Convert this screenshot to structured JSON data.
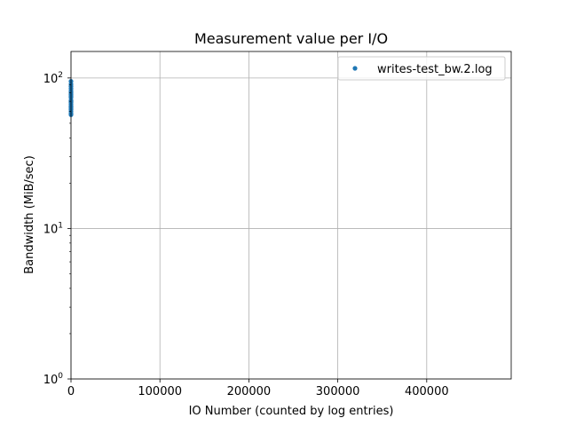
{
  "chart_data": {
    "type": "scatter",
    "title": "Measurement value per I/O",
    "xlabel": "IO Number (counted by log entries)",
    "ylabel": "Bandwidth (MiB/sec)",
    "xlim": [
      0,
      495000
    ],
    "ylim": [
      1,
      150
    ],
    "yscale": "log",
    "grid": true,
    "legend_position": "top-right",
    "x_ticks": [
      {
        "value": 0,
        "label": "0"
      },
      {
        "value": 100000,
        "label": "100000"
      },
      {
        "value": 200000,
        "label": "200000"
      },
      {
        "value": 300000,
        "label": "300000"
      },
      {
        "value": 400000,
        "label": "400000"
      }
    ],
    "y_ticks": [
      {
        "value": 1,
        "base": "10",
        "exp": "0"
      },
      {
        "value": 10,
        "base": "10",
        "exp": "1"
      },
      {
        "value": 100,
        "base": "10",
        "exp": "2"
      }
    ],
    "series": [
      {
        "name": "writes-test_bw.2.log",
        "color": "#1f77b4",
        "points": [
          {
            "x": 1,
            "y": 95
          },
          {
            "x": 2,
            "y": 88
          },
          {
            "x": 3,
            "y": 82
          },
          {
            "x": 4,
            "y": 78
          },
          {
            "x": 5,
            "y": 74
          },
          {
            "x": 6,
            "y": 70
          },
          {
            "x": 7,
            "y": 67
          },
          {
            "x": 8,
            "y": 64
          },
          {
            "x": 9,
            "y": 62
          },
          {
            "x": 10,
            "y": 60
          },
          {
            "x": 11,
            "y": 58
          },
          {
            "x": 12,
            "y": 91
          },
          {
            "x": 13,
            "y": 85
          },
          {
            "x": 14,
            "y": 76
          },
          {
            "x": 15,
            "y": 69
          },
          {
            "x": 16,
            "y": 65
          },
          {
            "x": 17,
            "y": 63
          },
          {
            "x": 18,
            "y": 71
          },
          {
            "x": 19,
            "y": 80
          },
          {
            "x": 20,
            "y": 57
          }
        ]
      }
    ]
  }
}
